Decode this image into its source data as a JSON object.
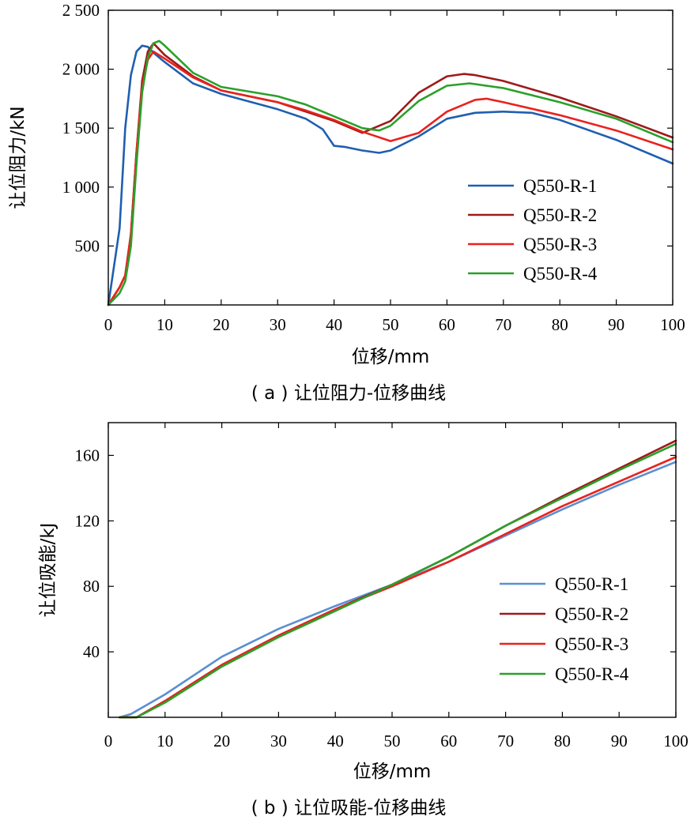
{
  "chart_data": [
    {
      "type": "line",
      "caption": "( a ) 让位阻力-位移曲线",
      "xlabel": "位移/mm",
      "ylabel": "让位阻力/kN",
      "xlim": [
        0,
        100
      ],
      "ylim": [
        0,
        2500
      ],
      "xticks": [
        0,
        10,
        20,
        30,
        40,
        50,
        60,
        70,
        80,
        90,
        100
      ],
      "xtick_labels": [
        "0",
        "10",
        "20",
        "30",
        "40",
        "50",
        "60",
        "70",
        "80",
        "90",
        "100"
      ],
      "yticks": [
        500,
        1000,
        1500,
        2000,
        2500
      ],
      "ytick_labels": [
        "500",
        "1 000",
        "1 500",
        "2 000",
        "2 500"
      ],
      "legend_position": "bottom-right",
      "series": [
        {
          "name": "Q550-R-1",
          "color": "#1f5fb0",
          "x": [
            0,
            2,
            3,
            4,
            5,
            6,
            7,
            8,
            10,
            15,
            20,
            30,
            35,
            38,
            40,
            42,
            45,
            48,
            50,
            55,
            60,
            65,
            70,
            75,
            80,
            90,
            100
          ],
          "y": [
            0,
            650,
            1500,
            1950,
            2150,
            2200,
            2190,
            2140,
            2060,
            1880,
            1790,
            1660,
            1580,
            1490,
            1350,
            1340,
            1310,
            1290,
            1310,
            1430,
            1580,
            1630,
            1640,
            1630,
            1570,
            1400,
            1200
          ]
        },
        {
          "name": "Q550-R-2",
          "color": "#9e1a1a",
          "x": [
            0,
            2,
            3,
            4,
            5,
            6,
            7,
            8,
            10,
            15,
            20,
            30,
            35,
            40,
            45,
            50,
            55,
            60,
            63,
            65,
            70,
            80,
            90,
            100
          ],
          "y": [
            0,
            150,
            250,
            600,
            1300,
            1900,
            2150,
            2220,
            2120,
            1940,
            1820,
            1720,
            1640,
            1560,
            1460,
            1560,
            1800,
            1940,
            1960,
            1950,
            1900,
            1760,
            1600,
            1420
          ]
        },
        {
          "name": "Q550-R-3",
          "color": "#e8221e",
          "x": [
            0,
            2,
            3,
            4,
            5,
            6,
            7,
            8,
            10,
            15,
            20,
            30,
            35,
            40,
            45,
            50,
            55,
            60,
            65,
            67,
            70,
            80,
            90,
            100
          ],
          "y": [
            0,
            150,
            250,
            600,
            1300,
            1850,
            2080,
            2150,
            2090,
            1930,
            1820,
            1720,
            1650,
            1570,
            1470,
            1390,
            1460,
            1640,
            1740,
            1750,
            1720,
            1610,
            1480,
            1320
          ]
        },
        {
          "name": "Q550-R-4",
          "color": "#2aa02a",
          "x": [
            0,
            2,
            3,
            4,
            5,
            6,
            7,
            8,
            9,
            10,
            15,
            20,
            30,
            35,
            40,
            45,
            48,
            50,
            55,
            60,
            64,
            70,
            80,
            90,
            100
          ],
          "y": [
            0,
            100,
            200,
            500,
            1200,
            1800,
            2100,
            2220,
            2240,
            2200,
            1970,
            1850,
            1770,
            1700,
            1600,
            1500,
            1480,
            1520,
            1730,
            1860,
            1880,
            1840,
            1720,
            1580,
            1380
          ]
        }
      ]
    },
    {
      "type": "line",
      "caption": "( b ) 让位吸能-位移曲线",
      "xlabel": "位移/mm",
      "ylabel": "让位吸能/kJ",
      "xlim": [
        0,
        100
      ],
      "ylim": [
        0,
        180
      ],
      "xticks": [
        0,
        10,
        20,
        30,
        40,
        50,
        60,
        70,
        80,
        90,
        100
      ],
      "xtick_labels": [
        "0",
        "10",
        "20",
        "30",
        "40",
        "50",
        "60",
        "70",
        "80",
        "90",
        "100"
      ],
      "yticks": [
        40,
        80,
        120,
        160
      ],
      "ytick_labels": [
        "40",
        "80",
        "120",
        "160"
      ],
      "legend_position": "bottom-right",
      "series": [
        {
          "name": "Q550-R-1",
          "color": "#5b8fd0",
          "x": [
            2,
            4,
            10,
            20,
            30,
            40,
            50,
            60,
            70,
            80,
            90,
            100
          ],
          "y": [
            0,
            2,
            14,
            37,
            54,
            68,
            81,
            95,
            111,
            127,
            142,
            156
          ]
        },
        {
          "name": "Q550-R-2",
          "color": "#9e1a1a",
          "x": [
            2,
            5,
            10,
            20,
            30,
            40,
            50,
            60,
            70,
            80,
            90,
            100
          ],
          "y": [
            0,
            0,
            10,
            32,
            50,
            66,
            81,
            98,
            117,
            135,
            152,
            169
          ]
        },
        {
          "name": "Q550-R-3",
          "color": "#e8221e",
          "x": [
            2,
            5,
            10,
            20,
            30,
            40,
            50,
            60,
            70,
            80,
            90,
            100
          ],
          "y": [
            0,
            0,
            10,
            32,
            50,
            66,
            80,
            95,
            112,
            129,
            144,
            159
          ]
        },
        {
          "name": "Q550-R-4",
          "color": "#2aa02a",
          "x": [
            2,
            5,
            10,
            20,
            30,
            40,
            50,
            60,
            70,
            80,
            90,
            100
          ],
          "y": [
            0,
            0,
            9,
            31,
            49,
            65,
            81,
            98,
            117,
            134,
            151,
            167
          ]
        }
      ]
    }
  ]
}
